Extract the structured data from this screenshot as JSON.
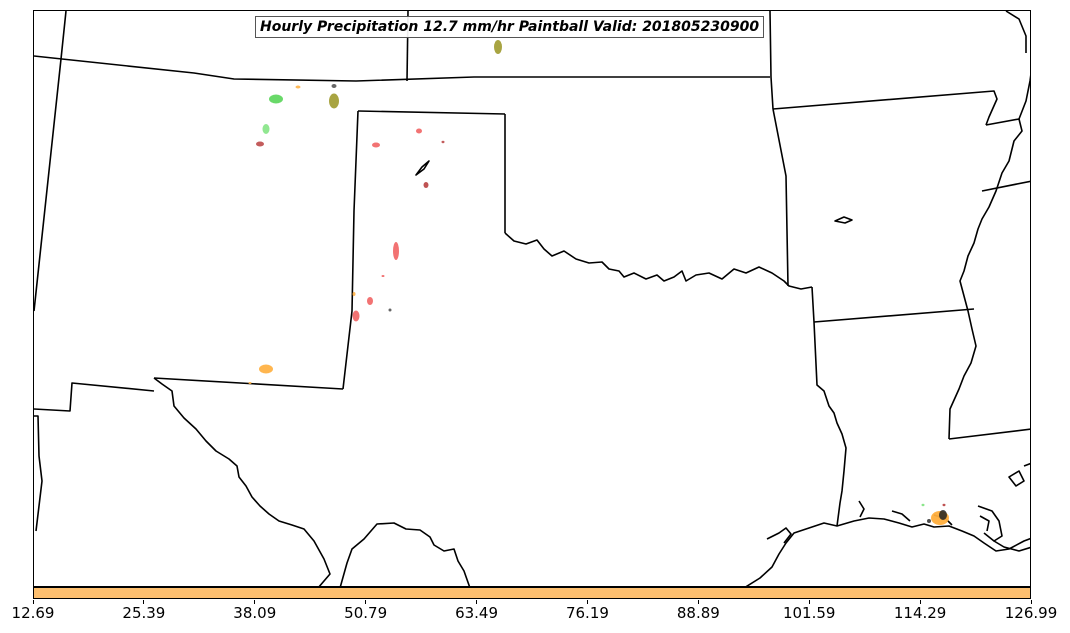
{
  "map": {
    "title": "Hourly Precipitation 12.7 mm/hr Paintball Valid: 201805230900"
  },
  "colorbar": {
    "color": "#fdbf6f",
    "ticks": [
      "12.69",
      "25.39",
      "38.09",
      "50.79",
      "63.49",
      "76.19",
      "88.89",
      "101.59",
      "114.29",
      "126.99"
    ]
  },
  "colors": {
    "green": "#4fd24f",
    "light_green": "#7ee37e",
    "olive": "#9e9a2e",
    "red": "#f05a5a",
    "dark_red": "#b84040",
    "orange": "#ffae3c",
    "black": "#000000"
  }
}
